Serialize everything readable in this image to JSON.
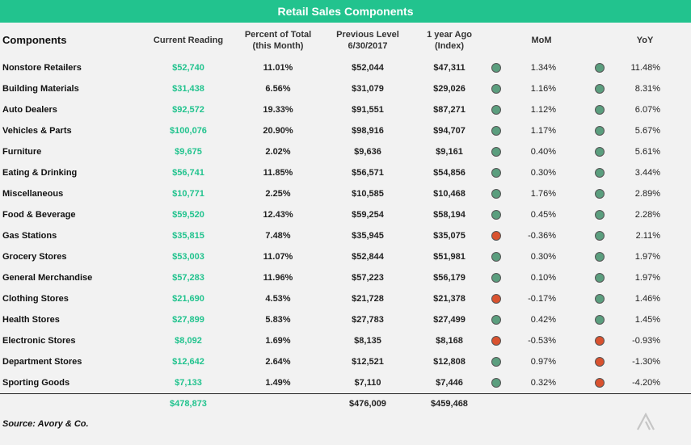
{
  "title": "Retail Sales Components",
  "headers": {
    "components": "Components",
    "current_reading": "Current Reading",
    "percent_of_total_line1": "Percent of Total",
    "percent_of_total_line2": "(this Month)",
    "previous_level_line1": "Previous Level",
    "previous_level_line2": "6/30/2017",
    "year_ago_line1": "1 year Ago",
    "year_ago_line2": "(Index)",
    "mom": "MoM",
    "yoy": "YoY"
  },
  "colors": {
    "positive": "#5b9e7e",
    "negative": "#d9522f",
    "accent": "#22c38e"
  },
  "rows": [
    {
      "name": "Nonstore Retailers",
      "current": "$52,740",
      "pct": "11.01%",
      "prev": "$52,044",
      "year_ago": "$47,311",
      "mom": "1.34%",
      "mom_status": "positive",
      "yoy": "11.48%",
      "yoy_status": "positive"
    },
    {
      "name": "Building Materials",
      "current": "$31,438",
      "pct": "6.56%",
      "prev": "$31,079",
      "year_ago": "$29,026",
      "mom": "1.16%",
      "mom_status": "positive",
      "yoy": "8.31%",
      "yoy_status": "positive"
    },
    {
      "name": "Auto Dealers",
      "current": "$92,572",
      "pct": "19.33%",
      "prev": "$91,551",
      "year_ago": "$87,271",
      "mom": "1.12%",
      "mom_status": "positive",
      "yoy": "6.07%",
      "yoy_status": "positive"
    },
    {
      "name": "Vehicles & Parts",
      "current": "$100,076",
      "pct": "20.90%",
      "prev": "$98,916",
      "year_ago": "$94,707",
      "mom": "1.17%",
      "mom_status": "positive",
      "yoy": "5.67%",
      "yoy_status": "positive"
    },
    {
      "name": "Furniture",
      "current": "$9,675",
      "pct": "2.02%",
      "prev": "$9,636",
      "year_ago": "$9,161",
      "mom": "0.40%",
      "mom_status": "positive",
      "yoy": "5.61%",
      "yoy_status": "positive"
    },
    {
      "name": "Eating & Drinking",
      "current": "$56,741",
      "pct": "11.85%",
      "prev": "$56,571",
      "year_ago": "$54,856",
      "mom": "0.30%",
      "mom_status": "positive",
      "yoy": "3.44%",
      "yoy_status": "positive"
    },
    {
      "name": "Miscellaneous",
      "current": "$10,771",
      "pct": "2.25%",
      "prev": "$10,585",
      "year_ago": "$10,468",
      "mom": "1.76%",
      "mom_status": "positive",
      "yoy": "2.89%",
      "yoy_status": "positive"
    },
    {
      "name": "Food & Beverage",
      "current": "$59,520",
      "pct": "12.43%",
      "prev": "$59,254",
      "year_ago": "$58,194",
      "mom": "0.45%",
      "mom_status": "positive",
      "yoy": "2.28%",
      "yoy_status": "positive"
    },
    {
      "name": "Gas Stations",
      "current": "$35,815",
      "pct": "7.48%",
      "prev": "$35,945",
      "year_ago": "$35,075",
      "mom": "-0.36%",
      "mom_status": "negative",
      "yoy": "2.11%",
      "yoy_status": "positive"
    },
    {
      "name": "Grocery Stores",
      "current": "$53,003",
      "pct": "11.07%",
      "prev": "$52,844",
      "year_ago": "$51,981",
      "mom": "0.30%",
      "mom_status": "positive",
      "yoy": "1.97%",
      "yoy_status": "positive"
    },
    {
      "name": "General Merchandise",
      "current": "$57,283",
      "pct": "11.96%",
      "prev": "$57,223",
      "year_ago": "$56,179",
      "mom": "0.10%",
      "mom_status": "positive",
      "yoy": "1.97%",
      "yoy_status": "positive"
    },
    {
      "name": "Clothing Stores",
      "current": "$21,690",
      "pct": "4.53%",
      "prev": "$21,728",
      "year_ago": "$21,378",
      "mom": "-0.17%",
      "mom_status": "negative",
      "yoy": "1.46%",
      "yoy_status": "positive"
    },
    {
      "name": "Health Stores",
      "current": "$27,899",
      "pct": "5.83%",
      "prev": "$27,783",
      "year_ago": "$27,499",
      "mom": "0.42%",
      "mom_status": "positive",
      "yoy": "1.45%",
      "yoy_status": "positive"
    },
    {
      "name": "Electronic Stores",
      "current": "$8,092",
      "pct": "1.69%",
      "prev": "$8,135",
      "year_ago": "$8,168",
      "mom": "-0.53%",
      "mom_status": "negative",
      "yoy": "-0.93%",
      "yoy_status": "negative"
    },
    {
      "name": "Department Stores",
      "current": "$12,642",
      "pct": "2.64%",
      "prev": "$12,521",
      "year_ago": "$12,808",
      "mom": "0.97%",
      "mom_status": "positive",
      "yoy": "-1.30%",
      "yoy_status": "negative"
    },
    {
      "name": "Sporting Goods",
      "current": "$7,133",
      "pct": "1.49%",
      "prev": "$7,110",
      "year_ago": "$7,446",
      "mom": "0.32%",
      "mom_status": "positive",
      "yoy": "-4.20%",
      "yoy_status": "negative"
    }
  ],
  "totals": {
    "current": "$478,873",
    "prev": "$476,009",
    "year_ago": "$459,468"
  },
  "source": "Source: Avory & Co.",
  "logo_icon": "avory-logo-icon"
}
